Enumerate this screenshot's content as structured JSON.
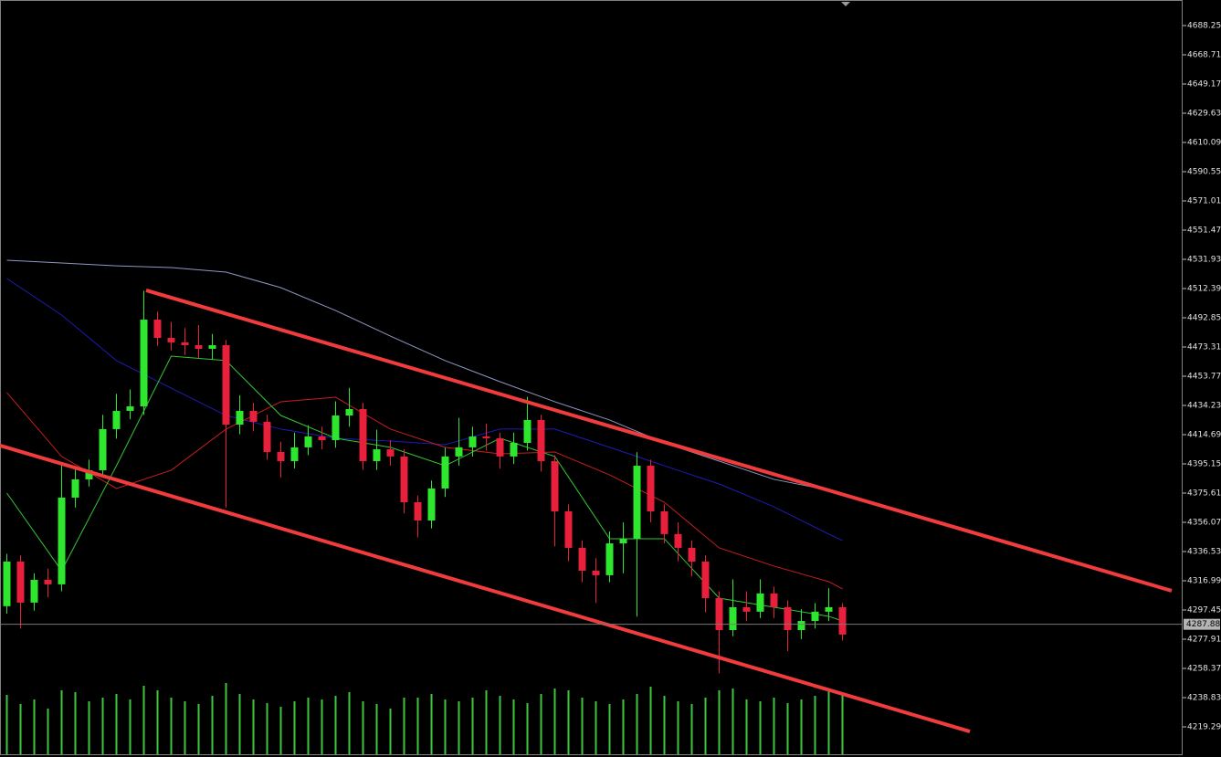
{
  "chart_data": {
    "type": "candlestick",
    "open": [
      4300.0,
      4329.8,
      4302.4,
      4317.6,
      4314.6,
      4372.6,
      4384.8,
      4390.9,
      4418.4,
      4430.6,
      4433.6,
      4491.6,
      4479.4,
      4476.4,
      4474.5,
      4472.1,
      4474.5,
      4421.4,
      4430.6,
      4423.3,
      4403.1,
      4397.0,
      4406.2,
      4413.5,
      4411.0,
      4427.5,
      4431.8,
      4397.0,
      4404.9,
      4400.1,
      4369.5,
      4357.3,
      4378.7,
      4400.1,
      4406.2,
      4413.5,
      4412.3,
      4400.1,
      4409.2,
      4424.5,
      4397.0,
      4363.4,
      4339.0,
      4323.7,
      4320.7,
      4342.0,
      4345.1,
      4393.9,
      4363.4,
      4348.2,
      4339.0,
      4329.8,
      4305.4,
      4284.0,
      4299.3,
      4296.3,
      4308.5,
      4299.3,
      4284.0,
      4290.1,
      4296.3,
      4299.3
    ],
    "high": [
      4335,
      4334,
      4322,
      4325,
      4395,
      4392,
      4398,
      4428,
      4442,
      4445,
      4511,
      4497,
      4490,
      4486,
      4488,
      4482,
      4478,
      4441,
      4436,
      4428,
      4410,
      4416,
      4421,
      4420,
      4437,
      4446,
      4436,
      4418,
      4411,
      4405,
      4374,
      4384,
      4406,
      4426,
      4420,
      4422,
      4416,
      4416,
      4440,
      4428,
      4401,
      4368,
      4344,
      4332,
      4350,
      4356,
      4403,
      4398,
      4368,
      4356,
      4344,
      4334,
      4310,
      4318,
      4310,
      4318,
      4313,
      4304,
      4298,
      4302,
      4312,
      4302
    ],
    "low": [
      4295,
      4285,
      4297,
      4306,
      4310,
      4366,
      4380,
      4386,
      4412,
      4425,
      4428,
      4474,
      4471,
      4468,
      4466,
      4465,
      4366,
      4415,
      4417,
      4398,
      4386,
      4392,
      4401,
      4405,
      4406,
      4420,
      4391,
      4391,
      4394,
      4362,
      4346,
      4352,
      4373,
      4394,
      4400,
      4404,
      4392,
      4395,
      4404,
      4390,
      4340,
      4330,
      4316,
      4302,
      4316,
      4322,
      4293,
      4356,
      4342,
      4330,
      4320,
      4296,
      4255,
      4280,
      4290,
      4292,
      4292,
      4270,
      4278,
      4285,
      4290,
      4277
    ],
    "close": [
      4329.8,
      4302.4,
      4317.6,
      4314.6,
      4372.6,
      4384.8,
      4390.9,
      4418.4,
      4430.6,
      4433.6,
      4491.6,
      4479.4,
      4476.4,
      4474.5,
      4472.1,
      4474.5,
      4421.4,
      4430.6,
      4423.3,
      4403.1,
      4397.0,
      4406.2,
      4413.5,
      4411.0,
      4427.5,
      4431.8,
      4397.0,
      4404.9,
      4400.1,
      4369.5,
      4357.3,
      4378.7,
      4400.1,
      4406.2,
      4413.5,
      4412.3,
      4400.1,
      4409.2,
      4424.5,
      4397.0,
      4363.4,
      4339.0,
      4323.7,
      4320.7,
      4342.0,
      4345.1,
      4393.9,
      4363.4,
      4348.2,
      4339.0,
      4329.8,
      4305.4,
      4284.0,
      4299.3,
      4296.3,
      4308.5,
      4299.3,
      4284.0,
      4290.1,
      4296.3,
      4299.3,
      4281.0
    ],
    "volume": [
      65,
      55,
      60,
      50,
      70,
      68,
      58,
      62,
      66,
      60,
      75,
      70,
      62,
      58,
      55,
      64,
      78,
      66,
      60,
      56,
      52,
      58,
      62,
      60,
      64,
      68,
      58,
      55,
      50,
      62,
      62,
      66,
      60,
      58,
      62,
      70,
      64,
      60,
      56,
      66,
      72,
      70,
      62,
      58,
      55,
      60,
      66,
      74,
      64,
      58,
      55,
      62,
      70,
      72,
      60,
      58,
      62,
      56,
      60,
      64,
      70,
      66
    ],
    "up_color": "#2ee62e",
    "down_color": "#e8203c",
    "volume_color": "#3cc83c",
    "ylim": [
      4200.97,
      4705.35
    ],
    "yticks": [
      4688.25,
      4668.71,
      4649.17,
      4629.63,
      4610.09,
      4590.55,
      4571.01,
      4551.47,
      4531.93,
      4512.39,
      4492.85,
      4473.31,
      4453.77,
      4434.23,
      4414.69,
      4395.15,
      4375.61,
      4356.07,
      4336.53,
      4316.99,
      4297.45,
      4277.91,
      4258.37,
      4238.83,
      4219.29
    ],
    "current_price": 4287.88,
    "ma_x": [
      0,
      4,
      8,
      12,
      16,
      20,
      24,
      28,
      32,
      36,
      40,
      44,
      48,
      52,
      56,
      60,
      61
    ],
    "moving_averages": [
      {
        "color": "#8e97bf",
        "values": [
          4531.3,
          4529.5,
          4527.6,
          4526.4,
          4523.4,
          4513.0,
          4497.7,
          4480.6,
          4464.2,
          4450.1,
          4436.7,
          4424.5,
          4409.2,
          4397.0,
          4384.8,
          4377.5,
          4375.6
        ]
      },
      {
        "color": "#1c1cb4",
        "values": [
          4519.1,
          4494.7,
          4464.2,
          4445.8,
          4427.5,
          4418.4,
          4412.3,
          4410.4,
          4408.0,
          4418.4,
          4418.4,
          4406.2,
          4393.9,
          4381.7,
          4366.4,
          4348.2,
          4343.9
        ]
      },
      {
        "color": "#c81e1e",
        "values": [
          4442.8,
          4400.1,
          4378.7,
          4390.9,
          4418.4,
          4436.7,
          4439.7,
          4418.4,
          4406.2,
          4401.9,
          4403.1,
          4387.8,
          4369.5,
          4339.0,
          4326.8,
          4316.4,
          4311.5
        ]
      },
      {
        "color": "#32c832",
        "values": [
          4375.6,
          4323.7,
          4393.9,
          4467.2,
          4464.2,
          4427.5,
          4412.3,
          4406.2,
          4393.9,
          4412.3,
          4400.1,
          4345.1,
          4345.1,
          4305.4,
          4299.3,
          4293.2,
          4290.1
        ]
      }
    ],
    "trendlines": [
      {
        "color": "#f03c3c",
        "x": [
          10.17,
          85.03
        ],
        "values": [
          4511.2,
          4310.3
        ]
      },
      {
        "color": "#f03c3c",
        "x": [
          -0.5,
          70.3
        ],
        "values": [
          4407.4,
          4216.2
        ]
      }
    ]
  }
}
